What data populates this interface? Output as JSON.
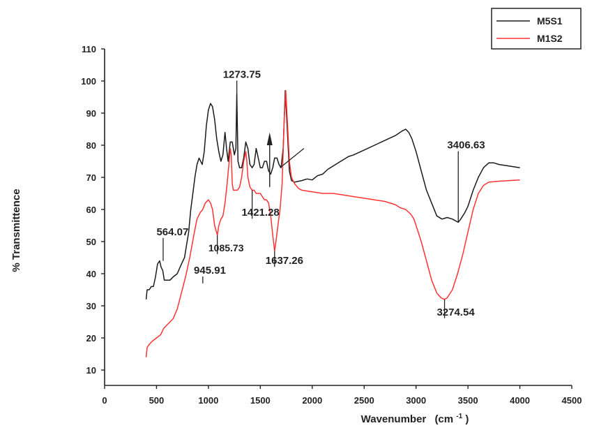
{
  "chart_data": {
    "type": "line",
    "xlabel": "Wavenumber",
    "xlabel_unit": "(cm",
    "xlabel_sup": "-1",
    "xlabel_close": ")",
    "ylabel": "% Transmittence",
    "xlim": [
      0,
      4500
    ],
    "ylim": [
      0,
      115
    ],
    "xticks": [
      0,
      500,
      1000,
      1500,
      2000,
      2500,
      3000,
      3500,
      4000,
      4500
    ],
    "yticks": [
      10,
      20,
      30,
      40,
      50,
      60,
      70,
      80,
      90,
      100,
      110
    ],
    "grid": false,
    "legend_position": "top-right",
    "series": [
      {
        "name": "M5S1",
        "color": "#1a1a1a",
        "points": [
          [
            400,
            32
          ],
          [
            410,
            35
          ],
          [
            430,
            35
          ],
          [
            450,
            36
          ],
          [
            470,
            36
          ],
          [
            490,
            39
          ],
          [
            510,
            43
          ],
          [
            530,
            44
          ],
          [
            545,
            42
          ],
          [
            560,
            41
          ],
          [
            575,
            38
          ],
          [
            600,
            38
          ],
          [
            630,
            38
          ],
          [
            660,
            39
          ],
          [
            700,
            40
          ],
          [
            740,
            43
          ],
          [
            770,
            45
          ],
          [
            790,
            49
          ],
          [
            810,
            53
          ],
          [
            830,
            60
          ],
          [
            850,
            65
          ],
          [
            870,
            70
          ],
          [
            890,
            74
          ],
          [
            910,
            76
          ],
          [
            940,
            74
          ],
          [
            960,
            78
          ],
          [
            980,
            86
          ],
          [
            1000,
            91
          ],
          [
            1020,
            93
          ],
          [
            1040,
            92
          ],
          [
            1060,
            88
          ],
          [
            1080,
            82
          ],
          [
            1100,
            78
          ],
          [
            1120,
            75
          ],
          [
            1140,
            77
          ],
          [
            1160,
            84
          ],
          [
            1175,
            79
          ],
          [
            1190,
            75
          ],
          [
            1210,
            81
          ],
          [
            1230,
            81
          ],
          [
            1250,
            77
          ],
          [
            1265,
            79
          ],
          [
            1273.75,
            96
          ],
          [
            1285,
            75
          ],
          [
            1300,
            73
          ],
          [
            1320,
            73
          ],
          [
            1340,
            76
          ],
          [
            1360,
            81
          ],
          [
            1380,
            79
          ],
          [
            1400,
            74
          ],
          [
            1421.28,
            73
          ],
          [
            1440,
            74
          ],
          [
            1460,
            79
          ],
          [
            1480,
            76
          ],
          [
            1500,
            73
          ],
          [
            1520,
            73
          ],
          [
            1540,
            75
          ],
          [
            1560,
            75
          ],
          [
            1580,
            72
          ],
          [
            1600,
            71
          ],
          [
            1620,
            73
          ],
          [
            1637.26,
            76
          ],
          [
            1660,
            76
          ],
          [
            1680,
            74
          ],
          [
            1700,
            73
          ],
          [
            1720,
            79
          ],
          [
            1740,
            97
          ],
          [
            1760,
            85
          ],
          [
            1780,
            72
          ],
          [
            1800,
            69
          ],
          [
            1830,
            68.5
          ],
          [
            1870,
            68.8
          ],
          [
            1900,
            69
          ],
          [
            1950,
            69.5
          ],
          [
            2000,
            69.2
          ],
          [
            2050,
            70.5
          ],
          [
            2100,
            71
          ],
          [
            2150,
            72.5
          ],
          [
            2200,
            73.5
          ],
          [
            2250,
            74.5
          ],
          [
            2300,
            75.5
          ],
          [
            2350,
            76.5
          ],
          [
            2400,
            77
          ],
          [
            2500,
            78.5
          ],
          [
            2600,
            80
          ],
          [
            2700,
            81.5
          ],
          [
            2800,
            83
          ],
          [
            2870,
            84.5
          ],
          [
            2900,
            85
          ],
          [
            2930,
            84
          ],
          [
            2960,
            82
          ],
          [
            3000,
            78
          ],
          [
            3050,
            72
          ],
          [
            3100,
            66
          ],
          [
            3150,
            62
          ],
          [
            3200,
            58
          ],
          [
            3250,
            57
          ],
          [
            3300,
            57.5
          ],
          [
            3350,
            57
          ],
          [
            3406.63,
            56
          ],
          [
            3430,
            57
          ],
          [
            3470,
            59
          ],
          [
            3500,
            61
          ],
          [
            3550,
            66
          ],
          [
            3600,
            70
          ],
          [
            3650,
            73
          ],
          [
            3700,
            74.5
          ],
          [
            3750,
            74.5
          ],
          [
            3800,
            74
          ],
          [
            3900,
            73.5
          ],
          [
            4000,
            73
          ]
        ]
      },
      {
        "name": "M1S2",
        "color": "#ff3333",
        "points": [
          [
            400,
            14
          ],
          [
            410,
            17
          ],
          [
            430,
            18
          ],
          [
            460,
            19
          ],
          [
            500,
            20
          ],
          [
            540,
            21
          ],
          [
            570,
            23
          ],
          [
            600,
            24
          ],
          [
            630,
            25
          ],
          [
            660,
            26
          ],
          [
            700,
            29
          ],
          [
            740,
            34
          ],
          [
            780,
            39
          ],
          [
            820,
            45
          ],
          [
            860,
            52
          ],
          [
            890,
            57
          ],
          [
            920,
            59
          ],
          [
            945.91,
            60
          ],
          [
            970,
            62
          ],
          [
            1000,
            63
          ],
          [
            1020,
            62
          ],
          [
            1040,
            60
          ],
          [
            1060,
            55
          ],
          [
            1085.73,
            52
          ],
          [
            1100,
            55
          ],
          [
            1120,
            57
          ],
          [
            1140,
            58
          ],
          [
            1160,
            62
          ],
          [
            1180,
            68
          ],
          [
            1200,
            75
          ],
          [
            1210,
            79
          ],
          [
            1220,
            77
          ],
          [
            1230,
            68
          ],
          [
            1240,
            66
          ],
          [
            1260,
            66
          ],
          [
            1280,
            66
          ],
          [
            1300,
            67
          ],
          [
            1320,
            70
          ],
          [
            1340,
            75
          ],
          [
            1360,
            78
          ],
          [
            1370,
            75
          ],
          [
            1380,
            70
          ],
          [
            1400,
            67
          ],
          [
            1421.28,
            66
          ],
          [
            1440,
            66
          ],
          [
            1460,
            65
          ],
          [
            1480,
            65
          ],
          [
            1500,
            65
          ],
          [
            1520,
            64
          ],
          [
            1540,
            63
          ],
          [
            1560,
            63
          ],
          [
            1580,
            62
          ],
          [
            1600,
            58
          ],
          [
            1620,
            52
          ],
          [
            1637.26,
            47
          ],
          [
            1650,
            50
          ],
          [
            1670,
            55
          ],
          [
            1690,
            60
          ],
          [
            1710,
            68
          ],
          [
            1730,
            88
          ],
          [
            1745,
            97
          ],
          [
            1760,
            88
          ],
          [
            1780,
            75
          ],
          [
            1800,
            70
          ],
          [
            1830,
            68
          ],
          [
            1870,
            66.5
          ],
          [
            1900,
            66
          ],
          [
            2000,
            65.5
          ],
          [
            2100,
            65
          ],
          [
            2200,
            65
          ],
          [
            2300,
            64.5
          ],
          [
            2400,
            64
          ],
          [
            2500,
            63.5
          ],
          [
            2600,
            63
          ],
          [
            2700,
            62.5
          ],
          [
            2800,
            61.5
          ],
          [
            2850,
            60.5
          ],
          [
            2900,
            60
          ],
          [
            2950,
            58.5
          ],
          [
            2980,
            57
          ],
          [
            3000,
            55
          ],
          [
            3050,
            50
          ],
          [
            3100,
            44
          ],
          [
            3150,
            38
          ],
          [
            3200,
            34
          ],
          [
            3240,
            32.5
          ],
          [
            3274.54,
            32
          ],
          [
            3300,
            32.5
          ],
          [
            3350,
            35
          ],
          [
            3400,
            40
          ],
          [
            3450,
            46
          ],
          [
            3500,
            53
          ],
          [
            3550,
            60
          ],
          [
            3600,
            65
          ],
          [
            3650,
            67.5
          ],
          [
            3700,
            68.5
          ],
          [
            3800,
            68.8
          ],
          [
            3900,
            69
          ],
          [
            4000,
            69.2
          ]
        ]
      }
    ],
    "annotations": [
      {
        "label": "1273.75",
        "x": 1273.75,
        "y": 96,
        "tx": 1140,
        "ty": 101
      },
      {
        "label": "564.07",
        "x": 564.07,
        "y": 44,
        "tx": 500,
        "ty": 52
      },
      {
        "label": "945.91",
        "x": 945.91,
        "y": 37,
        "tx": 860,
        "ty": 40
      },
      {
        "label": "1085.73",
        "x": 1085.73,
        "y": 52,
        "tx": 1000,
        "ty": 47
      },
      {
        "label": "1421.28",
        "x": 1421.28,
        "y": 66,
        "tx": 1320,
        "ty": 58
      },
      {
        "label": "1637.26",
        "x": 1637.26,
        "y": 47,
        "tx": 1550,
        "ty": 43
      },
      {
        "label": "3406.63",
        "x": 3406.63,
        "y": 56,
        "tx": 3300,
        "ty": 79
      },
      {
        "label": "3274.54",
        "x": 3274.54,
        "y": 32,
        "tx": 3200,
        "ty": 27
      }
    ]
  }
}
